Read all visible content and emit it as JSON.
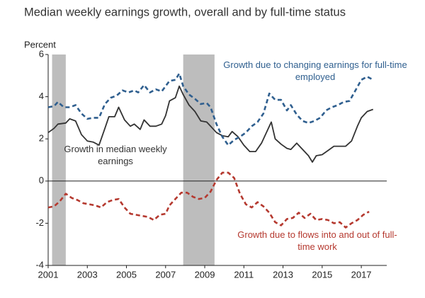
{
  "chart_data": {
    "type": "line",
    "title": "Median weekly earnings growth, overall and by full-time status",
    "y_label": "Percent",
    "xlim": [
      2001,
      2018.3
    ],
    "xticks": [
      2001,
      2003,
      2005,
      2007,
      2009,
      2011,
      2013,
      2015,
      2017
    ],
    "ylim": [
      -4,
      6
    ],
    "yticks": [
      -4,
      -2,
      0,
      2,
      4,
      6
    ],
    "zero_line": true,
    "shading_color": "#bdbdbd",
    "shading": [
      [
        2001.2,
        2001.9
      ],
      [
        2007.9,
        2009.5
      ]
    ],
    "series": [
      {
        "name": "Growth in median weekly earnings",
        "color": "#333333",
        "dashed": false,
        "x": [
          2001,
          2001.3,
          2001.5,
          2001.9,
          2002.1,
          2002.4,
          2002.7,
          2003,
          2003.3,
          2003.6,
          2003.9,
          2004.1,
          2004.4,
          2004.6,
          2004.9,
          2005.2,
          2005.4,
          2005.7,
          2005.9,
          2006.2,
          2006.5,
          2006.8,
          2007,
          2007.2,
          2007.5,
          2007.7,
          2007.9,
          2008.2,
          2008.5,
          2008.8,
          2009.1,
          2009.3,
          2009.6,
          2009.9,
          2010.2,
          2010.4,
          2010.7,
          2011,
          2011.3,
          2011.6,
          2011.9,
          2012.2,
          2012.4,
          2012.6,
          2012.9,
          2013.2,
          2013.4,
          2013.7,
          2014,
          2014.3,
          2014.5,
          2014.7,
          2015,
          2015.3,
          2015.6,
          2015.9,
          2016.2,
          2016.5,
          2016.8,
          2017,
          2017.3,
          2017.6
        ],
        "values": [
          2.3,
          2.5,
          2.7,
          2.75,
          2.95,
          2.85,
          2.2,
          1.9,
          1.85,
          1.7,
          2.5,
          3.05,
          3.05,
          3.5,
          2.9,
          2.6,
          2.7,
          2.45,
          2.9,
          2.6,
          2.6,
          2.7,
          3.1,
          3.8,
          3.95,
          4.5,
          4.1,
          3.6,
          3.3,
          2.85,
          2.8,
          2.6,
          2.3,
          2.15,
          2.1,
          2.35,
          2.1,
          1.7,
          1.4,
          1.4,
          1.8,
          2.4,
          2.8,
          2.0,
          1.75,
          1.55,
          1.5,
          1.8,
          1.5,
          1.2,
          0.9,
          1.2,
          1.25,
          1.45,
          1.65,
          1.65,
          1.65,
          1.9,
          2.6,
          3.0,
          3.3,
          3.4
        ]
      },
      {
        "name": "Growth due to changing earnings for full-time employed",
        "color": "#2f5f8f",
        "dashed": true,
        "x": [
          2001,
          2001.3,
          2001.5,
          2001.8,
          2002.1,
          2002.4,
          2002.7,
          2003,
          2003.3,
          2003.6,
          2003.9,
          2004.2,
          2004.5,
          2004.8,
          2005.1,
          2005.4,
          2005.6,
          2005.9,
          2006.2,
          2006.5,
          2006.8,
          2007,
          2007.2,
          2007.5,
          2007.7,
          2007.9,
          2008.2,
          2008.5,
          2008.8,
          2009.1,
          2009.3,
          2009.6,
          2009.9,
          2010.2,
          2010.5,
          2010.8,
          2011.1,
          2011.4,
          2011.7,
          2012,
          2012.3,
          2012.6,
          2012.9,
          2013.2,
          2013.4,
          2013.7,
          2014,
          2014.3,
          2014.6,
          2014.9,
          2015.2,
          2015.5,
          2015.8,
          2016.1,
          2016.4,
          2016.7,
          2017,
          2017.3,
          2017.6
        ],
        "values": [
          3.5,
          3.55,
          3.75,
          3.5,
          3.5,
          3.6,
          3.2,
          2.95,
          3.0,
          3.0,
          3.65,
          3.95,
          4.05,
          4.3,
          4.2,
          4.3,
          4.2,
          4.55,
          4.2,
          4.35,
          4.25,
          4.5,
          4.75,
          4.8,
          5.1,
          4.5,
          4.1,
          3.9,
          3.65,
          3.7,
          3.5,
          2.7,
          2.1,
          1.7,
          1.95,
          2.1,
          2.3,
          2.6,
          2.8,
          3.2,
          4.15,
          3.85,
          3.85,
          3.35,
          3.6,
          3.15,
          2.85,
          2.75,
          2.85,
          3.0,
          3.35,
          3.5,
          3.6,
          3.75,
          3.8,
          4.3,
          4.8,
          4.95,
          4.8
        ]
      },
      {
        "name": "Growth due to flows into and out of full-time work",
        "color": "#b5392f",
        "dashed": true,
        "x": [
          2001,
          2001.3,
          2001.6,
          2001.9,
          2002.2,
          2002.5,
          2002.8,
          2003.1,
          2003.4,
          2003.7,
          2004,
          2004.3,
          2004.6,
          2004.9,
          2005.2,
          2005.5,
          2005.8,
          2006.1,
          2006.4,
          2006.7,
          2007,
          2007.2,
          2007.5,
          2007.8,
          2008.1,
          2008.4,
          2008.7,
          2009,
          2009.3,
          2009.6,
          2009.9,
          2010.2,
          2010.5,
          2010.8,
          2011.1,
          2011.4,
          2011.7,
          2012,
          2012.3,
          2012.6,
          2012.9,
          2013.2,
          2013.5,
          2013.8,
          2014.1,
          2014.4,
          2014.7,
          2015,
          2015.3,
          2015.6,
          2015.9,
          2016.2,
          2016.5,
          2016.8,
          2017.1,
          2017.4
        ],
        "values": [
          -1.25,
          -1.2,
          -0.95,
          -0.6,
          -0.8,
          -0.9,
          -1.05,
          -1.1,
          -1.15,
          -1.25,
          -1.0,
          -0.9,
          -0.85,
          -1.25,
          -1.55,
          -1.6,
          -1.65,
          -1.7,
          -1.85,
          -1.6,
          -1.55,
          -1.15,
          -0.85,
          -0.55,
          -0.55,
          -0.75,
          -0.85,
          -0.8,
          -0.5,
          0.05,
          0.4,
          0.4,
          0.15,
          -0.6,
          -1.1,
          -1.25,
          -1.0,
          -1.2,
          -1.5,
          -1.95,
          -2.1,
          -1.8,
          -1.75,
          -1.5,
          -1.75,
          -1.55,
          -1.85,
          -1.8,
          -1.85,
          -2.0,
          -1.95,
          -2.2,
          -2.0,
          -1.85,
          -1.6,
          -1.45
        ]
      }
    ]
  }
}
